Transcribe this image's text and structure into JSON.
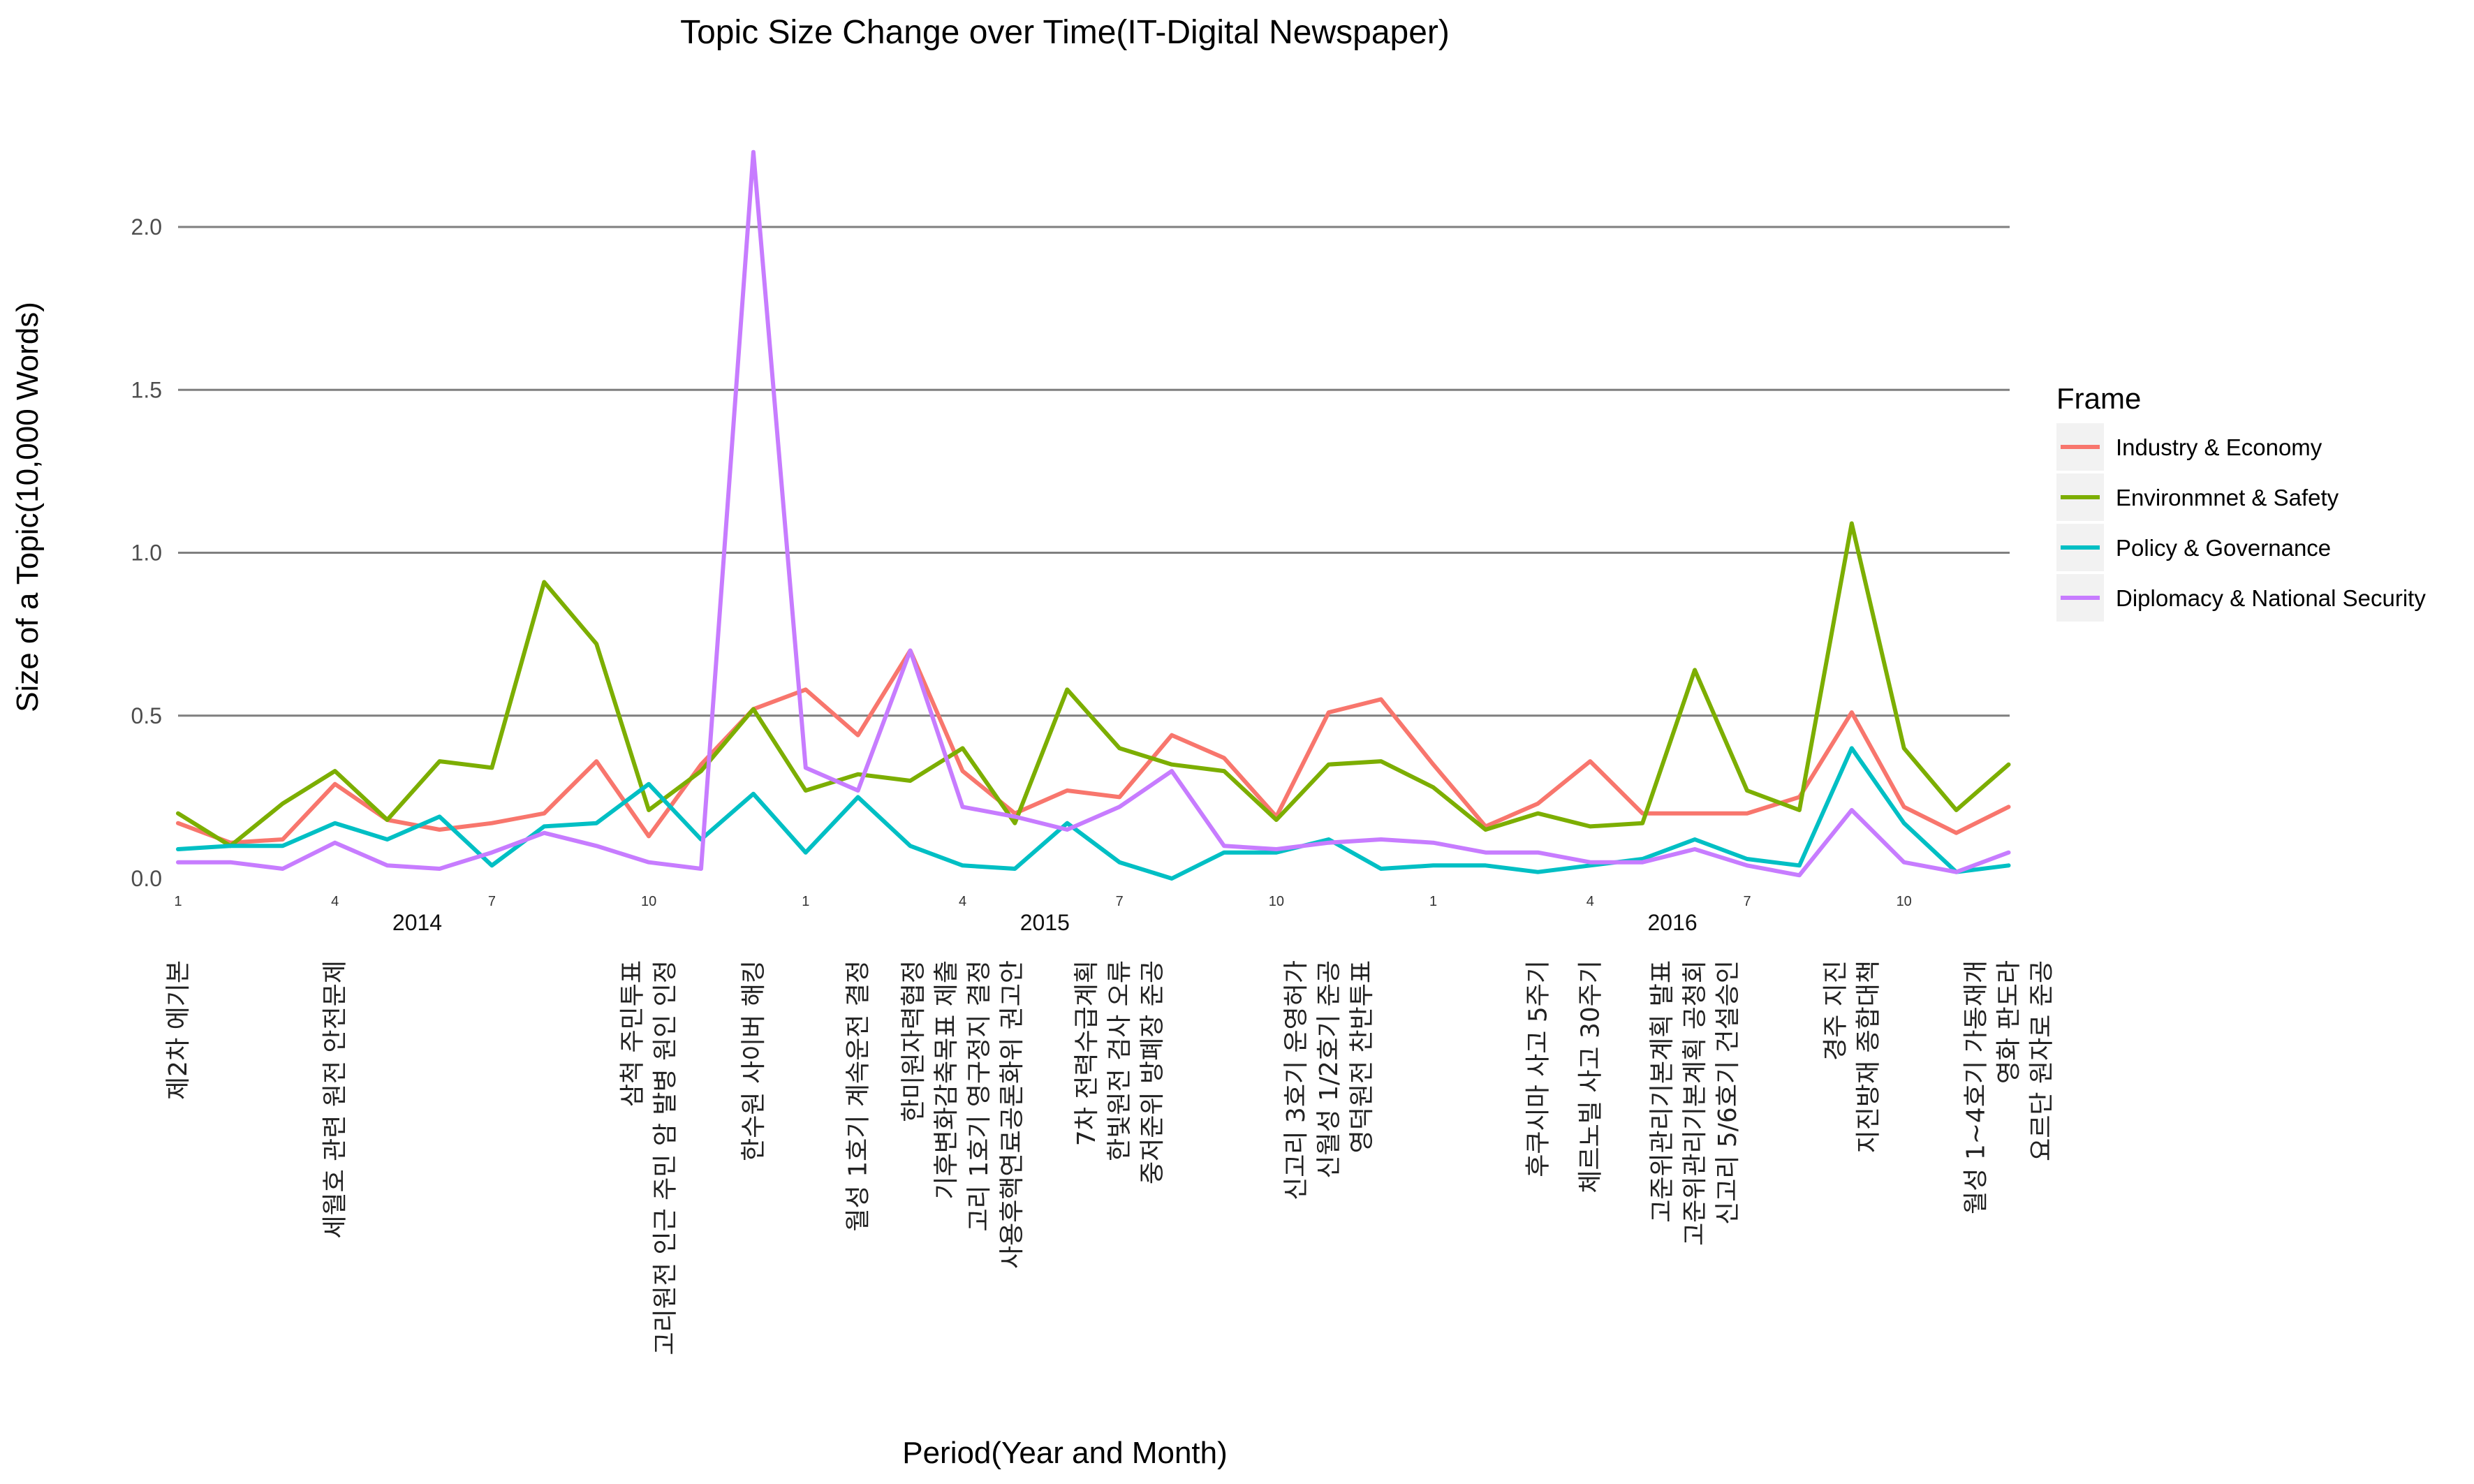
{
  "chart_data": {
    "type": "line",
    "title": "Topic Size Change over Time(IT-Digital Newspaper)",
    "xlabel": "Period(Year and Month)",
    "ylabel": "Size of a Topic(10,000 Words)",
    "ylim": [
      0,
      2.3
    ],
    "yticks": [
      0.0,
      0.5,
      1.0,
      1.5,
      2.0
    ],
    "ytick_labels": [
      "0.0",
      "0.5",
      "1.0",
      "1.5",
      "2.0"
    ],
    "months": [
      "2014-01",
      "2014-02",
      "2014-03",
      "2014-04",
      "2014-05",
      "2014-06",
      "2014-07",
      "2014-08",
      "2014-09",
      "2014-10",
      "2014-11",
      "2014-12",
      "2015-01",
      "2015-02",
      "2015-03",
      "2015-04",
      "2015-05",
      "2015-06",
      "2015-07",
      "2015-08",
      "2015-09",
      "2015-10",
      "2015-11",
      "2015-12",
      "2016-01",
      "2016-02",
      "2016-03",
      "2016-04",
      "2016-05",
      "2016-06",
      "2016-07",
      "2016-08",
      "2016-09",
      "2016-10",
      "2016-11",
      "2016-12"
    ],
    "month_ticks": [
      {
        "month": "2014-01",
        "label": "1"
      },
      {
        "month": "2014-04",
        "label": "4"
      },
      {
        "month": "2014-07",
        "label": "7"
      },
      {
        "month": "2014-10",
        "label": "10"
      },
      {
        "month": "2015-01",
        "label": "1"
      },
      {
        "month": "2015-04",
        "label": "4"
      },
      {
        "month": "2015-07",
        "label": "7"
      },
      {
        "month": "2015-10",
        "label": "10"
      },
      {
        "month": "2016-01",
        "label": "1"
      },
      {
        "month": "2016-04",
        "label": "4"
      },
      {
        "month": "2016-07",
        "label": "7"
      },
      {
        "month": "2016-10",
        "label": "10"
      }
    ],
    "year_labels": [
      {
        "month": "2014-06",
        "label": "2014"
      },
      {
        "month": "2015-06",
        "label": "2015"
      },
      {
        "month": "2016-06",
        "label": "2016"
      }
    ],
    "legend": {
      "title": "Frame",
      "position": "right"
    },
    "grid": "horizontal",
    "series": [
      {
        "name": "Industry & Economy",
        "color": "#F8766D",
        "values": [
          0.17,
          0.11,
          0.12,
          0.29,
          0.18,
          0.15,
          0.17,
          0.2,
          0.36,
          0.13,
          0.35,
          0.52,
          0.58,
          0.44,
          0.7,
          0.33,
          0.2,
          0.27,
          0.25,
          0.44,
          0.37,
          0.19,
          0.51,
          0.55,
          0.35,
          0.16,
          0.23,
          0.36,
          0.2,
          0.2,
          0.2,
          0.25,
          0.51,
          0.22,
          0.14,
          0.22
        ]
      },
      {
        "name": "Environmnet & Safety",
        "color": "#7CAE00",
        "values": [
          0.2,
          0.1,
          0.23,
          0.33,
          0.18,
          0.36,
          0.34,
          0.91,
          0.72,
          0.21,
          0.33,
          0.52,
          0.27,
          0.32,
          0.3,
          0.4,
          0.17,
          0.58,
          0.4,
          0.35,
          0.33,
          0.18,
          0.35,
          0.36,
          0.28,
          0.15,
          0.2,
          0.16,
          0.17,
          0.64,
          0.27,
          0.21,
          1.09,
          0.4,
          0.21,
          0.35
        ]
      },
      {
        "name": "Policy & Governance",
        "color": "#00BFC4",
        "values": [
          0.09,
          0.1,
          0.1,
          0.17,
          0.12,
          0.19,
          0.04,
          0.16,
          0.17,
          0.29,
          0.12,
          0.26,
          0.08,
          0.25,
          0.1,
          0.04,
          0.03,
          0.17,
          0.05,
          0.0,
          0.08,
          0.08,
          0.12,
          0.03,
          0.04,
          0.04,
          0.02,
          0.04,
          0.06,
          0.12,
          0.06,
          0.04,
          0.4,
          0.17,
          0.02,
          0.04
        ]
      },
      {
        "name": "Diplomacy & National Security",
        "color": "#C77CFF",
        "values": [
          0.05,
          0.05,
          0.03,
          0.11,
          0.04,
          0.03,
          0.08,
          0.14,
          0.1,
          0.05,
          0.03,
          2.23,
          0.34,
          0.27,
          0.7,
          0.22,
          0.19,
          0.15,
          0.22,
          0.33,
          0.1,
          0.09,
          0.11,
          0.12,
          0.11,
          0.08,
          0.08,
          0.05,
          0.05,
          0.09,
          0.04,
          0.01,
          0.21,
          0.05,
          0.02,
          0.08
        ]
      }
    ],
    "events": [
      {
        "month": "2014-01",
        "lines": [
          "제2차 에기본"
        ]
      },
      {
        "month": "2014-04",
        "lines": [
          "세월호 관련 원전 안전문제"
        ]
      },
      {
        "month": "2014-10",
        "lines": [
          "삼척 주민투표",
          "고리원전 인근 주민 암 발병 원인 인정"
        ]
      },
      {
        "month": "2014-12",
        "lines": [
          "한수원 사이버 해킹"
        ]
      },
      {
        "month": "2015-02",
        "lines": [
          "월성 1호기 계속운전 결정"
        ]
      },
      {
        "month": "2015-04",
        "lines": [
          "한미원자력협정",
          "기후변화감축목표 제출",
          "고리 1호기 영구정지 결정",
          "사용후핵연료공론화위 권고안"
        ]
      },
      {
        "month": "2015-07",
        "lines": [
          "7차 전력수급계획",
          "한빛원전 검사 오류",
          "중저준위 방폐장 준공"
        ]
      },
      {
        "month": "2015-11",
        "lines": [
          "신고리 3호기 운영허가",
          "신월성 1/2호기 준공",
          "영덕원전 찬반투표"
        ]
      },
      {
        "month": "2016-03",
        "lines": [
          "후쿠시마 사고 5주기"
        ]
      },
      {
        "month": "2016-04",
        "lines": [
          "체르노빌 사고 30주기"
        ]
      },
      {
        "month": "2016-06",
        "lines": [
          "고준위관리기본계획 발표",
          "고준위관리기본계획 공청회",
          "신고리 5/6호기 건설승인"
        ]
      },
      {
        "month": "2016-09",
        "lines": [
          "경주 지진",
          "지진방재 종합대책"
        ]
      },
      {
        "month": "2016-12",
        "lines": [
          "월성 1~4호기 가동재개",
          "영화 판도라",
          "요르단 원자로 준공"
        ]
      }
    ]
  }
}
